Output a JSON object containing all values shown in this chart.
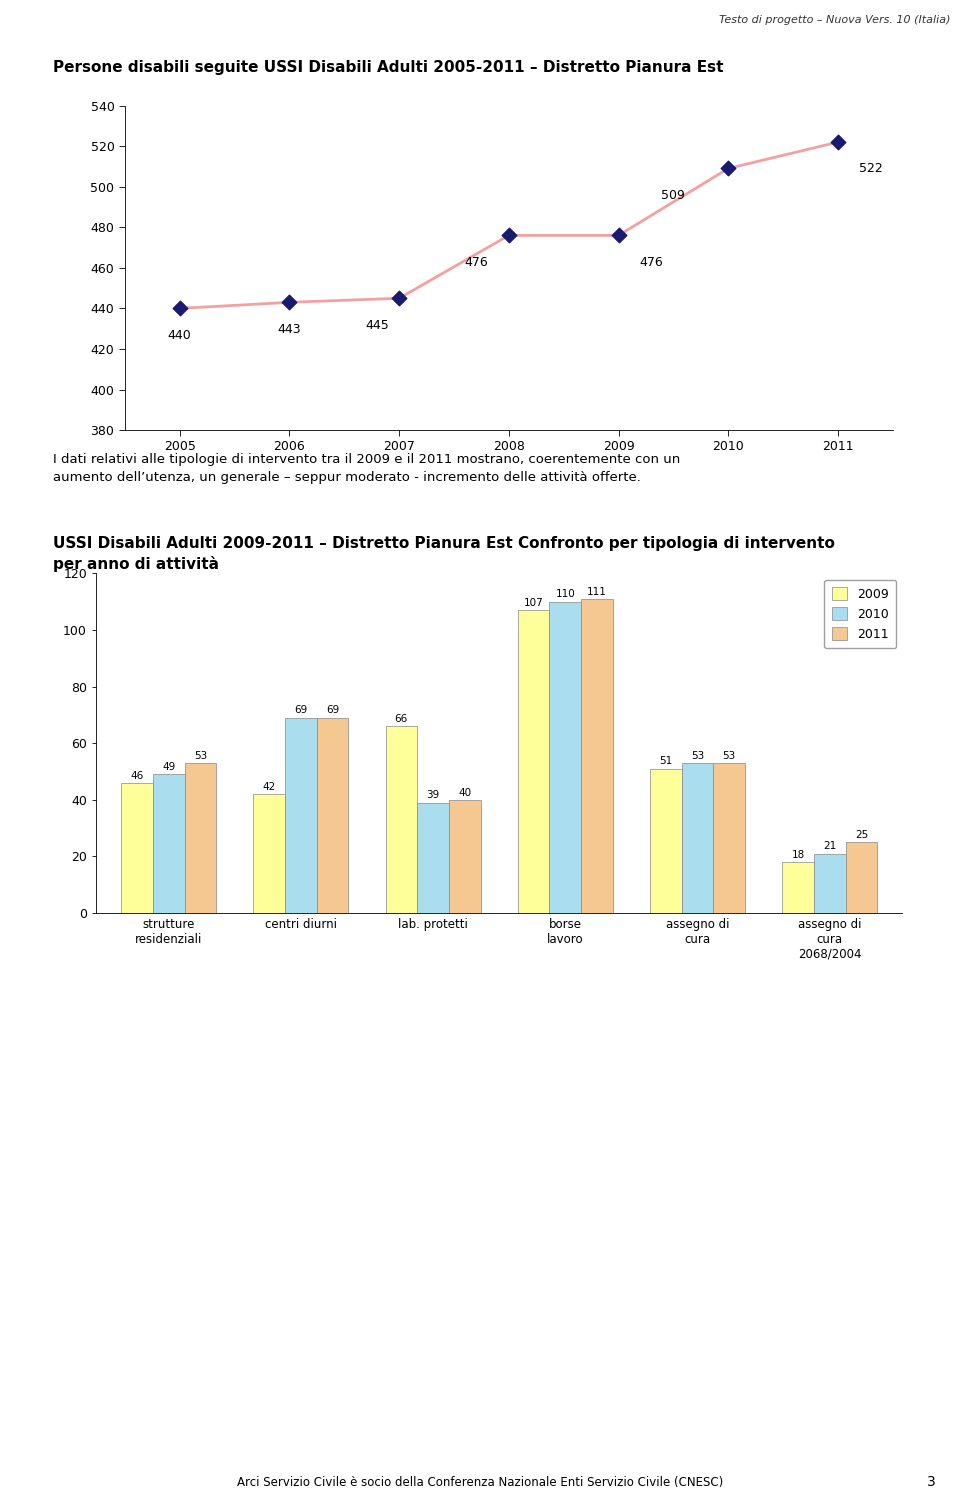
{
  "header_text": "Testo di progetto – Nuova Vers. 10 (Italia)",
  "line_chart": {
    "title": "Persone disabili seguite USSI Disabili Adulti 2005-2011 – Distretto Pianura Est",
    "years": [
      2005,
      2006,
      2007,
      2008,
      2009,
      2010,
      2011
    ],
    "values": [
      440,
      443,
      445,
      476,
      476,
      509,
      522
    ],
    "line_color": "#f4a0a0",
    "marker_color": "#1a1a6e",
    "ylim": [
      380,
      540
    ],
    "yticks": [
      380,
      400,
      420,
      440,
      460,
      480,
      500,
      520,
      540
    ]
  },
  "paragraph_text": "I dati relativi alle tipologie di intervento tra il 2009 e il 2011 mostrano, coerentemente con un\naumento dell’utenza, un generale – seppur moderato - incremento delle attività offerte.",
  "bar_chart": {
    "title": "USSI Disabili Adulti 2009-2011 – Distretto Pianura Est Confronto per tipologia di intervento\nper anno di attività",
    "categories": [
      "strutture\nresidenziali",
      "centri diurni",
      "lab. protetti",
      "borse\nlavoro",
      "assegno di\ncura",
      "assegno di\ncura\n2068/2004"
    ],
    "series": {
      "2009": [
        46,
        42,
        66,
        107,
        51,
        18
      ],
      "2010": [
        49,
        69,
        39,
        110,
        53,
        21
      ],
      "2011": [
        53,
        69,
        40,
        111,
        53,
        25
      ]
    },
    "colors": {
      "2009": "#ffff99",
      "2010": "#aaddee",
      "2011": "#f4c890"
    },
    "ylim": [
      0,
      120
    ],
    "yticks": [
      0,
      20,
      40,
      60,
      80,
      100,
      120
    ],
    "legend_labels": [
      "2009",
      "2010",
      "2011"
    ]
  },
  "footer_text": "Arci Servizio Civile è socio della Conferenza Nazionale Enti Servizio Civile (CNESC)",
  "page_number": "3",
  "background_color": "#ffffff"
}
